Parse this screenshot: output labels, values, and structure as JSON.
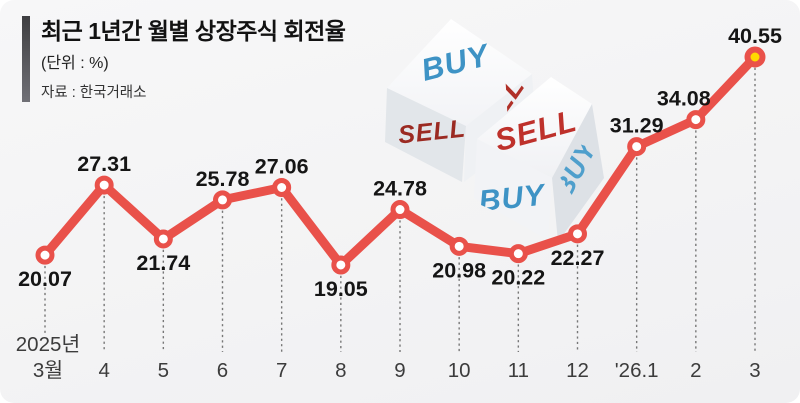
{
  "header": {
    "title": "최근 1년간 월별 상장주식 회전율",
    "unit": "(단위 : %)",
    "source": "자료 : 한국거래소"
  },
  "dice": {
    "die_back": {
      "top_face": "BUY",
      "front_face": "SELL",
      "side_face_fragment": "LL"
    },
    "die_front": {
      "top_face": "SELL",
      "front_face": "BUY",
      "side_face": "BUY"
    }
  },
  "colors": {
    "line": "#E9514A",
    "highlight_marker": "#FFD900",
    "buy_text": "#3E93C5",
    "buy_text_side": "#4F9FCC",
    "sell_text_bright": "#BE312B",
    "sell_text_dark": "#9B2A22",
    "guide_line": "#777777",
    "label_text": "#151515"
  },
  "chart_data": {
    "type": "line",
    "title": "최근 1년간 월별 상장주식 회전율",
    "unit": "%",
    "source": "한국거래소",
    "x": [
      "2025년\n3월",
      "4",
      "5",
      "6",
      "7",
      "8",
      "9",
      "10",
      "11",
      "12",
      "'26.1",
      "2",
      "3"
    ],
    "values": [
      20.07,
      27.31,
      21.74,
      25.78,
      27.06,
      19.05,
      24.78,
      20.98,
      20.22,
      22.27,
      31.29,
      34.08,
      40.55
    ],
    "value_labels": [
      "20.07",
      "27.31",
      "21.74",
      "25.78",
      "27.06",
      "19.05",
      "24.78",
      "20.98",
      "20.22",
      "22.27",
      "31.29",
      "34.08",
      "40.55"
    ],
    "highlight_index": 12,
    "ylim": [
      17,
      43
    ],
    "grid": false,
    "legend": "none",
    "marker": "circle-open-red"
  }
}
